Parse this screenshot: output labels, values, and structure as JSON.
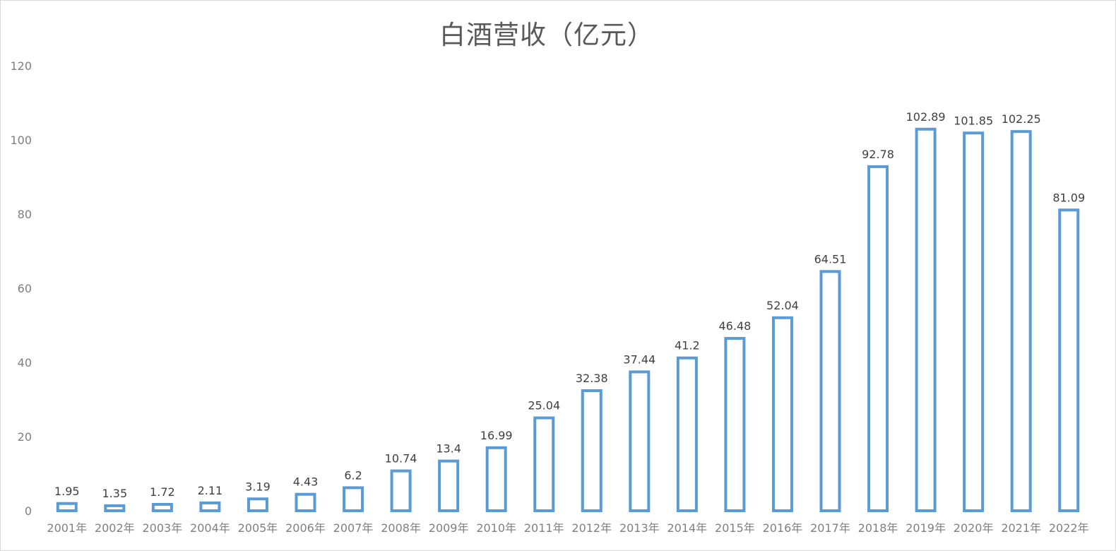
{
  "chart_data": {
    "type": "bar",
    "title": "白酒营收（亿元）",
    "xlabel": "",
    "ylabel": "",
    "categories": [
      "2001年",
      "2002年",
      "2003年",
      "2004年",
      "2005年",
      "2006年",
      "2007年",
      "2008年",
      "2009年",
      "2010年",
      "2011年",
      "2012年",
      "2013年",
      "2014年",
      "2015年",
      "2016年",
      "2017年",
      "2018年",
      "2019年",
      "2020年",
      "2021年",
      "2022年"
    ],
    "series": [
      {
        "values": [
          1.95,
          1.35,
          1.72,
          2.11,
          3.19,
          4.43,
          6.2,
          10.74,
          13.4,
          16.99,
          25.04,
          32.38,
          37.44,
          41.2,
          46.48,
          52.04,
          64.51,
          92.78,
          102.89,
          101.85,
          102.25,
          81.09
        ]
      }
    ],
    "data_labels": [
      "1.95",
      "1.35",
      "1.72",
      "2.11",
      "3.19",
      "4.43",
      "6.2",
      "10.74",
      "13.4",
      "16.99",
      "25.04",
      "32.38",
      "37.44",
      "41.2",
      "46.48",
      "52.04",
      "64.51",
      "92.78",
      "102.89",
      "101.85",
      "102.25",
      "81.09"
    ],
    "ylim": [
      0,
      120
    ],
    "yticks": [
      "0",
      "20",
      "40",
      "60",
      "80",
      "100",
      "120"
    ],
    "grid": false,
    "legend": "none",
    "bar_style": "outline",
    "bar_color": "#5b9bd5"
  }
}
